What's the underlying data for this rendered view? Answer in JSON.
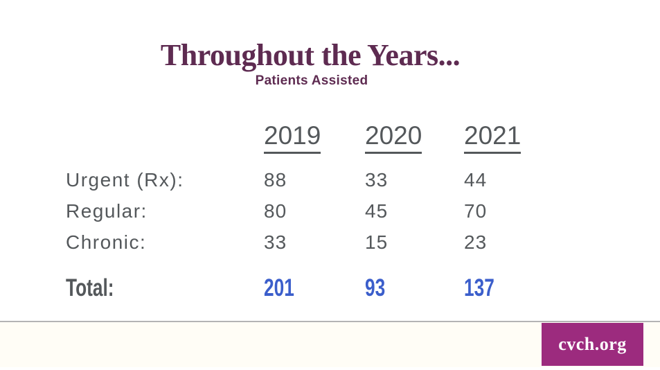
{
  "slide": {
    "title": "Throughout the Years...",
    "subtitle": "Patients Assisted"
  },
  "footer": {
    "link_label": "cvch.org"
  },
  "colors": {
    "title_plum": "#5E2B51",
    "table_gray": "#54585B",
    "total_blue": "#3B5ECB",
    "badge_magenta": "#9C2B7E",
    "divider_gray": "#B4B4B4",
    "footer_band_cream": "#FFFDF6"
  },
  "chart_data": {
    "type": "table",
    "title": "Throughout the Years...",
    "subtitle": "Patients Assisted",
    "columns": [
      "2019",
      "2020",
      "2021"
    ],
    "rows": [
      {
        "label": "Urgent (Rx):",
        "values": [
          88,
          33,
          44
        ]
      },
      {
        "label": "Regular:",
        "values": [
          80,
          45,
          70
        ]
      },
      {
        "label": "Chronic:",
        "values": [
          33,
          15,
          23
        ]
      },
      {
        "label": "Total:",
        "values": [
          201,
          93,
          137
        ],
        "is_total": true
      }
    ]
  }
}
